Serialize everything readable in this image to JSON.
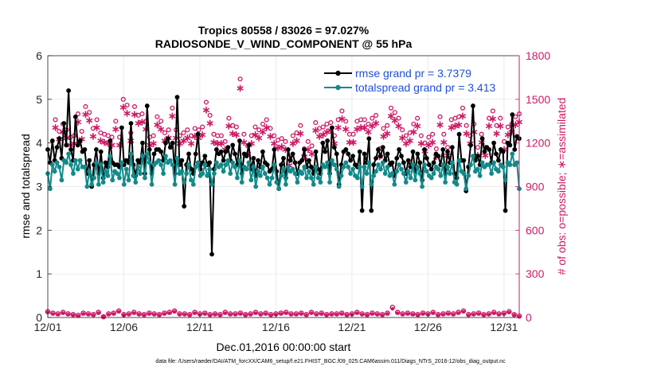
{
  "chart_data": {
    "type": "line",
    "title_line1": "Tropics 80558 / 83026 = 97.027%",
    "title_line2": "RADIOSONDE_V_WIND_COMPONENT @ 55 hPa",
    "xlabel": "Dec.01,2016 00:00:00 start",
    "ylabel_left": "rmse and totalspread",
    "ylabel_right": "# of obs: o=possible; ∗=assimilated",
    "x_range": [
      0,
      31
    ],
    "x_ticks": [
      0,
      5,
      10,
      15,
      20,
      25,
      30
    ],
    "x_tick_labels": [
      "12/01",
      "12/06",
      "12/11",
      "12/16",
      "12/21",
      "12/26",
      "12/31"
    ],
    "ylim_left": [
      0,
      6
    ],
    "y_ticks_left": [
      0,
      1,
      2,
      3,
      4,
      5,
      6
    ],
    "y_tick_labels_left": [
      "0",
      "1",
      "2",
      "3",
      "4",
      "5",
      "6"
    ],
    "ylim_right": [
      0,
      1800
    ],
    "y_ticks_right": [
      0,
      300,
      600,
      900,
      1200,
      1500,
      1800
    ],
    "y_tick_labels_right": [
      "0",
      "300",
      "600",
      "900",
      "1200",
      "1500",
      "1800"
    ],
    "grid": true,
    "legend_position": "top-right",
    "colors": {
      "rmse": "#000000",
      "spread": "#128a8a",
      "obs": "#cc1a66",
      "legend_text": "#1f4fd9"
    },
    "series": [
      {
        "name": "rmse",
        "legend": "rmse grand pr = 3.7379",
        "values": [
          3.85,
          3.55,
          4.05,
          3.6,
          3.9,
          4.1,
          3.65,
          4.45,
          3.95,
          5.2,
          3.85,
          3.6,
          4.6,
          3.95,
          4.05,
          3.8,
          3.85,
          3.3,
          3.6,
          3.0,
          3.5,
          3.85,
          3.3,
          3.8,
          3.2,
          3.55,
          3.45,
          4.05,
          3.55,
          3.5,
          3.5,
          3.45,
          4.35,
          3.5,
          3.6,
          3.55,
          4.45,
          3.5,
          3.25,
          3.6,
          3.55,
          4.0,
          3.3,
          4.85,
          3.85,
          3.3,
          3.75,
          3.85,
          3.85,
          3.8,
          3.6,
          4.0,
          4.1,
          3.9,
          4.0,
          3.3,
          5.05,
          3.5,
          3.6,
          2.55,
          3.5,
          3.75,
          3.4,
          3.3,
          3.75,
          4.2,
          3.4,
          3.55,
          3.7,
          3.5,
          3.55,
          1.45,
          3.4,
          3.85,
          3.75,
          3.8,
          3.6,
          3.8,
          3.9,
          3.6,
          3.95,
          3.75,
          3.5,
          4.05,
          3.3,
          3.75,
          3.7,
          3.95,
          3.4,
          3.65,
          3.25,
          3.6,
          3.45,
          3.8,
          3.55,
          3.5,
          3.35,
          3.4,
          3.85,
          3.35,
          2.95,
          3.5,
          3.65,
          3.2,
          3.85,
          3.6,
          3.75,
          3.55,
          3.3,
          3.55,
          3.6,
          3.85,
          3.45,
          3.6,
          3.45,
          3.3,
          3.8,
          3.4,
          3.3,
          4.0,
          3.8,
          4.05,
          3.3,
          4.35,
          3.9,
          3.75,
          3.05,
          3.5,
          3.8,
          3.85,
          3.75,
          3.6,
          3.7,
          3.5,
          3.45,
          3.8,
          2.45,
          3.75,
          3.55,
          4.1,
          2.45,
          3.5,
          3.65,
          3.85,
          3.7,
          3.9,
          3.6,
          3.75,
          3.5,
          3.55,
          3.25,
          3.65,
          3.85,
          3.7,
          3.55,
          3.3,
          3.6,
          3.45,
          3.8,
          3.35,
          3.75,
          3.55,
          3.15,
          3.85,
          3.65,
          3.5,
          3.4,
          3.55,
          3.75,
          3.7,
          3.5,
          3.85,
          3.3,
          3.8,
          3.55,
          3.9,
          3.3,
          3.2,
          4.2,
          3.6,
          3.6,
          2.9,
          3.45,
          3.95,
          4.85,
          3.6,
          3.7,
          3.5,
          4.1,
          3.8,
          3.9,
          3.85,
          3.55,
          4.0,
          3.75,
          3.6,
          3.85,
          3.8,
          2.45,
          4.0,
          3.95,
          4.65,
          3.85,
          4.15,
          4.1
        ]
      },
      {
        "name": "totalspread",
        "legend": "totalspread grand pr = 3.413",
        "values": [
          3.3,
          2.95,
          3.5,
          3.35,
          3.55,
          3.45,
          3.15,
          3.6,
          3.55,
          3.75,
          3.5,
          3.3,
          3.6,
          3.4,
          3.6,
          3.45,
          3.45,
          3.0,
          3.35,
          3.05,
          3.2,
          3.55,
          3.05,
          3.5,
          3.1,
          3.35,
          3.25,
          3.7,
          3.15,
          3.35,
          3.3,
          3.2,
          3.55,
          3.05,
          3.4,
          3.15,
          3.75,
          3.25,
          3.1,
          3.45,
          3.3,
          3.7,
          3.2,
          3.75,
          3.55,
          3.05,
          3.5,
          3.55,
          3.6,
          3.5,
          3.3,
          3.7,
          3.55,
          3.6,
          3.5,
          3.05,
          3.65,
          3.3,
          3.35,
          3.1,
          3.3,
          3.5,
          3.15,
          3.05,
          3.45,
          3.55,
          3.25,
          3.3,
          3.5,
          3.25,
          3.4,
          3.05,
          3.3,
          3.55,
          3.45,
          3.5,
          3.35,
          3.5,
          3.6,
          3.3,
          3.55,
          3.45,
          3.2,
          3.6,
          3.1,
          3.45,
          3.4,
          3.55,
          3.15,
          3.45,
          3.0,
          3.35,
          3.25,
          3.45,
          3.3,
          3.2,
          3.05,
          3.2,
          3.5,
          3.1,
          2.95,
          3.25,
          3.4,
          3.05,
          3.45,
          3.35,
          3.4,
          3.3,
          3.1,
          3.35,
          3.3,
          3.45,
          3.2,
          3.35,
          3.2,
          3.05,
          3.45,
          3.2,
          3.1,
          3.5,
          3.45,
          3.55,
          3.1,
          3.6,
          3.5,
          3.4,
          3.0,
          3.25,
          3.45,
          3.55,
          3.45,
          3.3,
          3.4,
          3.25,
          3.2,
          3.45,
          3.0,
          3.45,
          3.3,
          3.55,
          3.05,
          3.25,
          3.35,
          3.5,
          3.4,
          3.55,
          3.3,
          3.45,
          3.25,
          3.3,
          3.05,
          3.35,
          3.5,
          3.4,
          3.3,
          3.1,
          3.35,
          3.2,
          3.5,
          3.15,
          3.45,
          3.3,
          3.0,
          3.5,
          3.35,
          3.25,
          3.2,
          3.3,
          3.45,
          3.4,
          3.25,
          3.5,
          3.1,
          3.45,
          3.3,
          3.55,
          3.1,
          3.05,
          3.6,
          3.35,
          3.3,
          2.95,
          3.25,
          3.5,
          3.7,
          3.35,
          3.4,
          3.25,
          3.55,
          3.45,
          3.5,
          3.5,
          3.3,
          3.55,
          3.4,
          3.35,
          3.5,
          3.45,
          3.15,
          3.55,
          3.5,
          3.75,
          3.5,
          3.55,
          2.95
        ]
      }
    ],
    "obs_possible": [
      1360,
      1280,
      1330,
      1290,
      1240,
      1250,
      1400,
      1280,
      1450,
      1410,
      1300,
      1360,
      1270,
      1260,
      1250,
      1240,
      1350,
      1240,
      1500,
      1460,
      1270,
      1450,
      1390,
      1400,
      1350,
      1240,
      1250,
      1380,
      1350,
      1270,
      1290,
      1440,
      1290,
      1250,
      1270,
      1290,
      1250,
      1300,
      1290,
      1310,
      1480,
      1390,
      1260,
      1250,
      1250,
      1210,
      1370,
      1320,
      1310,
      1640,
      1260,
      1180,
      1250,
      1310,
      1290,
      1330,
      1360,
      1300,
      1250,
      1220,
      1230,
      1210,
      1100,
      1250,
      1270,
      1320,
      1160,
      1210,
      1180,
      1340,
      1300,
      1310,
      1330,
      1340,
      1250,
      1360,
      1420,
      1350,
      1260,
      1260,
      1350,
      1360,
      1360,
      1330,
      1370,
      1390,
      1160,
      1300,
      1320,
      1440,
      1410,
      1370,
      1290,
      1250,
      1270,
      1330,
      1370,
      1250,
      1200,
      1240,
      1260,
      1160,
      1380,
      1260,
      1170,
      1360,
      1370,
      1380,
      1440,
      1320,
      1250,
      1330,
      1170,
      1260,
      1170,
      1370,
      1420,
      1320,
      1370,
      1210,
      1310,
      1330,
      1380,
      1400
    ],
    "obs_assimilated": [
      1310,
      1230,
      1280,
      1240,
      1190,
      1200,
      1350,
      1230,
      1400,
      1360,
      1250,
      1310,
      1220,
      1210,
      1200,
      1190,
      1300,
      1190,
      1450,
      1410,
      1220,
      1400,
      1340,
      1350,
      1300,
      1190,
      1200,
      1330,
      1300,
      1220,
      1240,
      1390,
      1240,
      1200,
      1220,
      1240,
      1200,
      1250,
      1240,
      1260,
      1430,
      1340,
      1210,
      1200,
      1200,
      1160,
      1320,
      1270,
      1260,
      1580,
      1210,
      1130,
      1200,
      1260,
      1240,
      1280,
      1310,
      1250,
      1200,
      1170,
      1180,
      1160,
      1050,
      1200,
      1220,
      1270,
      1110,
      1160,
      1130,
      1290,
      1250,
      1260,
      1280,
      1290,
      1200,
      1310,
      1370,
      1300,
      1210,
      1210,
      1300,
      1310,
      1310,
      1280,
      1320,
      1340,
      1110,
      1250,
      1270,
      1390,
      1360,
      1320,
      1240,
      1200,
      1220,
      1280,
      1320,
      1200,
      1150,
      1190,
      1210,
      1110,
      1330,
      1210,
      1120,
      1310,
      1320,
      1330,
      1390,
      1270,
      1200,
      1280,
      1120,
      1210,
      1120,
      1320,
      1370,
      1270,
      1320,
      1160,
      1260,
      1280,
      1330,
      1350
    ],
    "obs_bottom_possible": [
      40,
      30,
      25,
      35,
      25,
      20,
      15,
      30,
      25,
      20,
      35,
      5,
      25,
      30,
      45,
      20,
      25,
      35,
      25,
      20,
      30,
      25,
      20,
      30,
      35,
      45,
      25,
      25,
      20,
      35,
      25,
      30,
      20,
      25,
      20,
      35,
      25,
      25,
      30,
      20,
      25,
      35,
      25,
      30,
      20,
      25,
      30,
      35,
      25,
      25,
      30,
      20,
      35,
      25,
      30,
      20,
      25,
      25,
      30,
      20,
      25,
      35,
      25,
      20,
      30,
      25,
      20,
      30,
      70,
      35,
      25,
      30,
      25,
      20,
      30,
      25,
      35,
      20,
      25,
      30,
      25,
      35,
      45,
      20,
      25,
      30,
      20,
      25,
      35,
      25,
      30,
      40,
      20,
      10
    ],
    "obs_bottom_assimilated": [
      35,
      25,
      20,
      30,
      20,
      15,
      10,
      25,
      20,
      15,
      30,
      5,
      20,
      25,
      40,
      15,
      20,
      30,
      20,
      15,
      25,
      20,
      15,
      25,
      30,
      40,
      20,
      20,
      15,
      30,
      20,
      25,
      15,
      20,
      15,
      30,
      20,
      20,
      25,
      15,
      20,
      30,
      20,
      25,
      15,
      20,
      25,
      30,
      20,
      20,
      25,
      15,
      30,
      20,
      25,
      15,
      20,
      20,
      25,
      15,
      20,
      30,
      20,
      15,
      25,
      20,
      15,
      25,
      60,
      30,
      20,
      25,
      20,
      15,
      25,
      20,
      30,
      15,
      20,
      25,
      20,
      30,
      40,
      15,
      20,
      25,
      15,
      20,
      30,
      20,
      25,
      35,
      15,
      5
    ]
  },
  "footer": {
    "data_file": "data file: /Users/raeder/DAI/ATM_forcXX/CAM6_setup/f.e21.FHIST_BGC.f09_025.CAM6assim.011/Diags_NTrS_2016-12/obs_diag_output.nc"
  }
}
